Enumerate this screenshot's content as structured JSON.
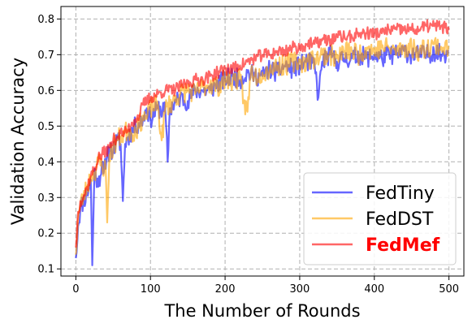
{
  "chart_data": {
    "type": "line",
    "title": "",
    "xlabel": "The Number of Rounds",
    "ylabel": "Validation Accuracy",
    "xlim": [
      -20,
      520
    ],
    "ylim": [
      0.08,
      0.835
    ],
    "xticks": [
      0,
      100,
      200,
      300,
      400,
      500
    ],
    "yticks": [
      0.1,
      0.2,
      0.3,
      0.4,
      0.5,
      0.6,
      0.7,
      0.8
    ],
    "grid": true,
    "grid_style": "dashed",
    "legend_position": "lower-right",
    "series": [
      {
        "name": "FedTiny",
        "color": "#0000ff",
        "alpha": 0.6,
        "bold": false,
        "anchors": [
          [
            0,
            0.13
          ],
          [
            3,
            0.22
          ],
          [
            6,
            0.27
          ],
          [
            10,
            0.29
          ],
          [
            15,
            0.31
          ],
          [
            20,
            0.35
          ],
          [
            22,
            0.11
          ],
          [
            25,
            0.38
          ],
          [
            30,
            0.33
          ],
          [
            35,
            0.4
          ],
          [
            40,
            0.38
          ],
          [
            45,
            0.44
          ],
          [
            50,
            0.43
          ],
          [
            55,
            0.46
          ],
          [
            60,
            0.45
          ],
          [
            63,
            0.29
          ],
          [
            66,
            0.45
          ],
          [
            70,
            0.47
          ],
          [
            80,
            0.5
          ],
          [
            90,
            0.52
          ],
          [
            95,
            0.55
          ],
          [
            100,
            0.52
          ],
          [
            110,
            0.55
          ],
          [
            120,
            0.54
          ],
          [
            123,
            0.4
          ],
          [
            126,
            0.55
          ],
          [
            140,
            0.58
          ],
          [
            150,
            0.57
          ],
          [
            160,
            0.6
          ],
          [
            170,
            0.6
          ],
          [
            180,
            0.6
          ],
          [
            190,
            0.62
          ],
          [
            200,
            0.63
          ],
          [
            210,
            0.64
          ],
          [
            220,
            0.63
          ],
          [
            230,
            0.65
          ],
          [
            240,
            0.64
          ],
          [
            250,
            0.64
          ],
          [
            260,
            0.66
          ],
          [
            270,
            0.65
          ],
          [
            280,
            0.67
          ],
          [
            290,
            0.66
          ],
          [
            300,
            0.67
          ],
          [
            310,
            0.68
          ],
          [
            320,
            0.67
          ],
          [
            325,
            0.58
          ],
          [
            330,
            0.68
          ],
          [
            340,
            0.7
          ],
          [
            350,
            0.68
          ],
          [
            360,
            0.69
          ],
          [
            370,
            0.69
          ],
          [
            380,
            0.7
          ],
          [
            390,
            0.69
          ],
          [
            400,
            0.7
          ],
          [
            410,
            0.69
          ],
          [
            420,
            0.7
          ],
          [
            430,
            0.7
          ],
          [
            440,
            0.71
          ],
          [
            450,
            0.7
          ],
          [
            460,
            0.7
          ],
          [
            470,
            0.7
          ],
          [
            480,
            0.71
          ],
          [
            490,
            0.7
          ],
          [
            500,
            0.71
          ]
        ],
        "noise": 0.028,
        "seed": 11
      },
      {
        "name": "FedDST",
        "color": "#ffa500",
        "alpha": 0.6,
        "bold": false,
        "anchors": [
          [
            0,
            0.14
          ],
          [
            3,
            0.24
          ],
          [
            6,
            0.28
          ],
          [
            10,
            0.3
          ],
          [
            15,
            0.33
          ],
          [
            20,
            0.36
          ],
          [
            25,
            0.37
          ],
          [
            30,
            0.4
          ],
          [
            35,
            0.39
          ],
          [
            40,
            0.38
          ],
          [
            42,
            0.23
          ],
          [
            45,
            0.42
          ],
          [
            50,
            0.44
          ],
          [
            55,
            0.46
          ],
          [
            60,
            0.47
          ],
          [
            65,
            0.48
          ],
          [
            70,
            0.49
          ],
          [
            75,
            0.48
          ],
          [
            80,
            0.49
          ],
          [
            85,
            0.5
          ],
          [
            90,
            0.53
          ],
          [
            95,
            0.52
          ],
          [
            100,
            0.55
          ],
          [
            110,
            0.56
          ],
          [
            115,
            0.46
          ],
          [
            120,
            0.55
          ],
          [
            130,
            0.57
          ],
          [
            140,
            0.59
          ],
          [
            150,
            0.6
          ],
          [
            160,
            0.59
          ],
          [
            170,
            0.61
          ],
          [
            180,
            0.62
          ],
          [
            190,
            0.61
          ],
          [
            200,
            0.63
          ],
          [
            210,
            0.63
          ],
          [
            220,
            0.63
          ],
          [
            225,
            0.57
          ],
          [
            230,
            0.54
          ],
          [
            235,
            0.66
          ],
          [
            240,
            0.64
          ],
          [
            250,
            0.65
          ],
          [
            260,
            0.66
          ],
          [
            270,
            0.67
          ],
          [
            280,
            0.67
          ],
          [
            290,
            0.68
          ],
          [
            300,
            0.68
          ],
          [
            310,
            0.68
          ],
          [
            320,
            0.69
          ],
          [
            330,
            0.7
          ],
          [
            340,
            0.7
          ],
          [
            350,
            0.69
          ],
          [
            360,
            0.71
          ],
          [
            370,
            0.71
          ],
          [
            380,
            0.7
          ],
          [
            390,
            0.72
          ],
          [
            400,
            0.71
          ],
          [
            410,
            0.72
          ],
          [
            420,
            0.72
          ],
          [
            430,
            0.71
          ],
          [
            440,
            0.72
          ],
          [
            450,
            0.72
          ],
          [
            460,
            0.71
          ],
          [
            470,
            0.72
          ],
          [
            480,
            0.73
          ],
          [
            490,
            0.72
          ],
          [
            500,
            0.72
          ]
        ],
        "noise": 0.03,
        "seed": 23
      },
      {
        "name": "FedMef",
        "color": "#ff0000",
        "alpha": 0.6,
        "bold": true,
        "anchors": [
          [
            0,
            0.16
          ],
          [
            3,
            0.26
          ],
          [
            6,
            0.29
          ],
          [
            10,
            0.3
          ],
          [
            15,
            0.33
          ],
          [
            20,
            0.36
          ],
          [
            25,
            0.38
          ],
          [
            30,
            0.41
          ],
          [
            35,
            0.42
          ],
          [
            40,
            0.43
          ],
          [
            45,
            0.44
          ],
          [
            50,
            0.46
          ],
          [
            55,
            0.47
          ],
          [
            60,
            0.48
          ],
          [
            65,
            0.48
          ],
          [
            70,
            0.49
          ],
          [
            75,
            0.51
          ],
          [
            80,
            0.52
          ],
          [
            85,
            0.53
          ],
          [
            90,
            0.56
          ],
          [
            95,
            0.57
          ],
          [
            100,
            0.58
          ],
          [
            110,
            0.59
          ],
          [
            120,
            0.6
          ],
          [
            130,
            0.6
          ],
          [
            140,
            0.61
          ],
          [
            150,
            0.62
          ],
          [
            160,
            0.63
          ],
          [
            170,
            0.63
          ],
          [
            180,
            0.64
          ],
          [
            190,
            0.65
          ],
          [
            200,
            0.66
          ],
          [
            210,
            0.66
          ],
          [
            220,
            0.67
          ],
          [
            230,
            0.68
          ],
          [
            240,
            0.69
          ],
          [
            250,
            0.7
          ],
          [
            260,
            0.7
          ],
          [
            270,
            0.71
          ],
          [
            280,
            0.71
          ],
          [
            290,
            0.72
          ],
          [
            300,
            0.72
          ],
          [
            310,
            0.73
          ],
          [
            320,
            0.73
          ],
          [
            330,
            0.74
          ],
          [
            340,
            0.74
          ],
          [
            350,
            0.75
          ],
          [
            360,
            0.75
          ],
          [
            370,
            0.75
          ],
          [
            380,
            0.76
          ],
          [
            390,
            0.76
          ],
          [
            400,
            0.76
          ],
          [
            410,
            0.76
          ],
          [
            420,
            0.77
          ],
          [
            430,
            0.77
          ],
          [
            440,
            0.77
          ],
          [
            450,
            0.77
          ],
          [
            460,
            0.77
          ],
          [
            470,
            0.78
          ],
          [
            480,
            0.78
          ],
          [
            490,
            0.78
          ],
          [
            500,
            0.77
          ]
        ],
        "noise": 0.018,
        "seed": 37
      }
    ]
  }
}
